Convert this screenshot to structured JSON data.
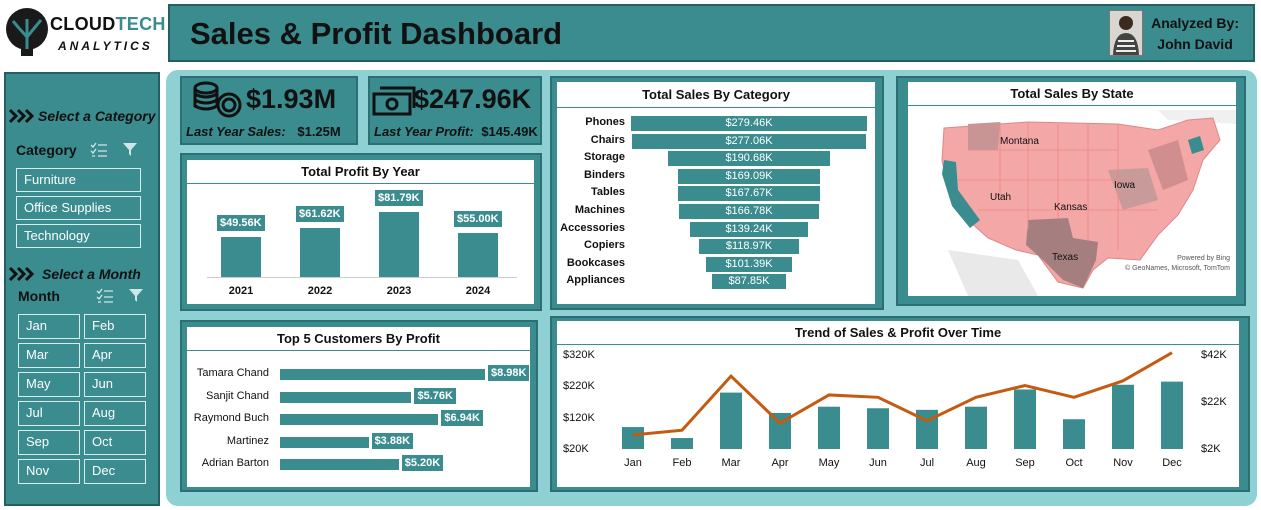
{
  "brand": {
    "name_part1": "CLOUD",
    "name_part2": "TECH",
    "tagline": "ANALYTICS"
  },
  "header": {
    "title": "Sales & Profit Dashboard",
    "analyst_label": "Analyzed By:",
    "analyst_name": "John David"
  },
  "sidebar": {
    "category_section": "Select a Category",
    "category_slicer_title": "Category",
    "categories": [
      "Furniture",
      "Office Supplies",
      "Technology"
    ],
    "month_section": "Select a Month",
    "month_slicer_title": "Month",
    "months": [
      "Jan",
      "Feb",
      "Mar",
      "Apr",
      "May",
      "Jun",
      "Jul",
      "Aug",
      "Sep",
      "Oct",
      "Nov",
      "Dec"
    ]
  },
  "kpis": {
    "sales": {
      "value": "$1.93M",
      "sub_label": "Last Year Sales:",
      "sub_value": "$1.25M",
      "icon": "coins-icon"
    },
    "profit": {
      "value": "$247.96K",
      "sub_label": "Last Year Profit:",
      "sub_value": "$145.49K",
      "icon": "cash-icon"
    }
  },
  "colors": {
    "accent": "#3a8c8f",
    "panel": "#8ed0d3",
    "line": "#c55a11",
    "map_high": "#f4a7a7",
    "map_low": "#b78a8a"
  },
  "charts": {
    "profit_by_year": {
      "title": "Total Profit By Year",
      "chart_data": {
        "type": "bar",
        "categories": [
          "2021",
          "2022",
          "2023",
          "2024"
        ],
        "values": [
          49.56,
          61.62,
          81.79,
          55.0
        ],
        "labels": [
          "$49.56K",
          "$61.62K",
          "$81.79K",
          "$55.00K"
        ],
        "ylim": [
          0,
          100
        ]
      }
    },
    "sales_by_category": {
      "title": "Total Sales By Category",
      "chart_data": {
        "type": "bar",
        "orientation": "horizontal-centered",
        "categories": [
          "Phones",
          "Chairs",
          "Storage",
          "Binders",
          "Tables",
          "Machines",
          "Accessories",
          "Copiers",
          "Bookcases",
          "Appliances"
        ],
        "values": [
          279.46,
          277.06,
          190.68,
          169.09,
          167.67,
          166.78,
          139.24,
          118.97,
          101.39,
          87.85
        ],
        "labels": [
          "$279.46K",
          "$277.06K",
          "$190.68K",
          "$169.09K",
          "$167.67K",
          "$166.78K",
          "$139.24K",
          "$118.97K",
          "$101.39K",
          "$87.85K"
        ]
      }
    },
    "sales_by_state": {
      "title": "Total Sales By State",
      "map_labels": [
        "Montana",
        "Utah",
        "Iowa",
        "Kansas",
        "Texas"
      ],
      "credits": [
        "Powered by Bing",
        "© GeoNames, Microsoft, TomTom"
      ]
    },
    "top_customers": {
      "title": "Top 5 Customers By Profit",
      "chart_data": {
        "type": "bar",
        "orientation": "horizontal",
        "categories": [
          "Tamara Chand",
          "Sanjit Chand",
          "Raymond Buch",
          "Martinez",
          "Adrian Barton"
        ],
        "values": [
          8.98,
          5.76,
          6.94,
          3.88,
          5.2
        ],
        "labels": [
          "$8.98K",
          "$5.76K",
          "$6.94K",
          "$3.88K",
          "$5.20K"
        ]
      }
    },
    "trend": {
      "title": "Trend of Sales & Profit Over Time",
      "chart_data": {
        "type": "bar",
        "categories": [
          "Jan",
          "Feb",
          "Mar",
          "Apr",
          "May",
          "Jun",
          "Jul",
          "Aug",
          "Sep",
          "Oct",
          "Nov",
          "Dec"
        ],
        "series": [
          {
            "type": "bar",
            "axis": "left",
            "values": [
              90,
              55,
              200,
              135,
              155,
              150,
              145,
              155,
              210,
              115,
              225,
              235
            ]
          },
          {
            "type": "line",
            "axis": "right",
            "values": [
              8,
              10,
              33,
              13,
              25,
              24,
              14,
              24,
              29,
              24,
              31,
              43
            ]
          }
        ],
        "yleft_ticks": [
          "$320K",
          "$220K",
          "$120K",
          "$20K"
        ],
        "yright_ticks": [
          "$42K",
          "$22K",
          "$2K"
        ],
        "yleft_range": [
          20,
          320
        ],
        "yright_range": [
          2,
          42
        ]
      }
    }
  }
}
